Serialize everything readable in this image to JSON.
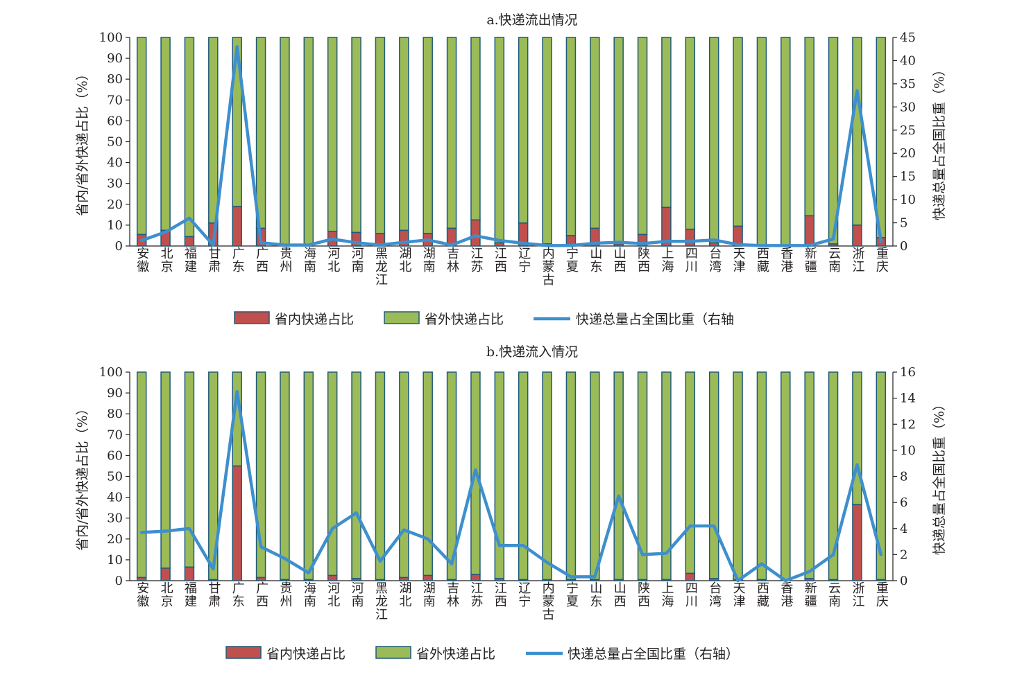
{
  "chart_data": [
    {
      "type": "bar",
      "title": "a.快递流出情况",
      "categories": [
        "安徽",
        "北京",
        "福建",
        "甘肃",
        "广东",
        "广西",
        "贵州",
        "海南",
        "河北",
        "河南",
        "黑龙江",
        "湖北",
        "湖南",
        "吉林",
        "江苏",
        "江西",
        "辽宁",
        "内蒙古",
        "宁夏",
        "山东",
        "山西",
        "陕西",
        "上海",
        "四川",
        "台湾",
        "天津",
        "西藏",
        "香港",
        "新疆",
        "云南",
        "浙江",
        "重庆"
      ],
      "ylabel": "省内/省外快递占比（%）",
      "y2label": "快递总量占全国比重（%）",
      "ylim": [
        0,
        100
      ],
      "yticks": [
        0,
        10,
        20,
        30,
        40,
        50,
        60,
        70,
        80,
        90,
        100
      ],
      "y2lim": [
        0,
        45
      ],
      "y2ticks": [
        0,
        5,
        10,
        15,
        20,
        25,
        30,
        35,
        40,
        45
      ],
      "stacked": true,
      "series": [
        {
          "name": "省内快递占比",
          "type": "bar",
          "color": "#c0504d",
          "values": [
            5.5,
            7.5,
            4.5,
            11,
            19,
            8.5,
            0.5,
            0.5,
            7,
            6.5,
            6,
            7.5,
            6,
            8.5,
            12.5,
            1.5,
            11,
            1,
            5,
            8.5,
            1,
            5.5,
            18.5,
            8,
            1.5,
            9.5,
            0.5,
            0.5,
            14.5,
            1,
            10,
            4
          ]
        },
        {
          "name": "省外快递占比",
          "type": "bar",
          "color": "#9bbb59",
          "values": [
            94.5,
            92.5,
            95.5,
            89,
            81,
            91.5,
            99.5,
            99.5,
            93,
            93.5,
            94,
            92.5,
            94,
            91.5,
            87.5,
            98.5,
            89,
            99,
            95,
            91.5,
            99,
            94.5,
            81.5,
            92,
            98.5,
            90.5,
            99.5,
            99.5,
            85.5,
            99,
            90,
            96
          ]
        },
        {
          "name": "快递总量占全国比重（右轴",
          "type": "line",
          "axis": "right",
          "color": "#3e8fcd",
          "values": [
            1.2,
            3,
            6,
            0.2,
            43,
            0.7,
            0.2,
            0.2,
            1.5,
            0.7,
            0.2,
            0.8,
            1.3,
            0.2,
            2.2,
            1.2,
            0.6,
            0.1,
            0.1,
            0.6,
            0.8,
            0.5,
            1,
            1,
            1.3,
            0.3,
            0.1,
            0.1,
            0.1,
            1.5,
            33.5,
            1
          ]
        }
      ],
      "legend": "bottom"
    },
    {
      "type": "bar",
      "title": "b.快递流入情况",
      "categories": [
        "安徽",
        "北京",
        "福建",
        "甘肃",
        "广东",
        "广西",
        "贵州",
        "海南",
        "河北",
        "河南",
        "黑龙江",
        "湖北",
        "湖南",
        "吉林",
        "江苏",
        "江西",
        "辽宁",
        "内蒙古",
        "宁夏",
        "山东",
        "山西",
        "陕西",
        "上海",
        "四川",
        "台湾",
        "天津",
        "西藏",
        "香港",
        "新疆",
        "云南",
        "浙江",
        "重庆"
      ],
      "ylabel": "省内/省外快递占比（%）",
      "y2label": "快递总量占全国比重（%）",
      "ylim": [
        0,
        100
      ],
      "yticks": [
        0,
        10,
        20,
        30,
        40,
        50,
        60,
        70,
        80,
        90,
        100
      ],
      "y2lim": [
        0,
        16
      ],
      "y2ticks": [
        0,
        2,
        4,
        6,
        8,
        10,
        12,
        14,
        16
      ],
      "stacked": true,
      "series": [
        {
          "name": "省内快递占比",
          "type": "bar",
          "color": "#c0504d",
          "values": [
            1.5,
            6,
            6.5,
            0.5,
            55,
            1.5,
            0.5,
            0.5,
            2.5,
            1,
            0.5,
            1.5,
            2.5,
            0.5,
            3,
            1,
            0.5,
            0.5,
            0.5,
            0.5,
            0.5,
            0.5,
            0.5,
            3.5,
            1,
            0.5,
            0.5,
            0.5,
            1,
            0.5,
            36.5,
            0.5
          ]
        },
        {
          "name": "省外快递占比",
          "type": "bar",
          "color": "#9bbb59",
          "values": [
            98.5,
            94,
            93.5,
            99.5,
            45,
            98.5,
            99.5,
            99.5,
            97.5,
            99,
            99.5,
            98.5,
            97.5,
            99.5,
            97,
            99,
            99.5,
            99.5,
            99.5,
            99.5,
            99.5,
            99.5,
            99.5,
            96.5,
            99,
            99.5,
            99.5,
            99.5,
            99,
            99.5,
            63.5,
            99.5
          ]
        },
        {
          "name": "快递总量占全国比重（右轴）",
          "type": "line",
          "axis": "right",
          "color": "#3e8fcd",
          "values": [
            3.7,
            3.8,
            4,
            0.9,
            14.5,
            2.6,
            1.7,
            0.6,
            4,
            5.2,
            1.5,
            3.9,
            3.2,
            1.3,
            8.5,
            2.7,
            2.7,
            1.4,
            0.3,
            0.3,
            6.5,
            2,
            2.1,
            4.2,
            4.2,
            0,
            1.3,
            0,
            0.7,
            2,
            8.9,
            2
          ]
        }
      ],
      "legend": "bottom"
    }
  ]
}
